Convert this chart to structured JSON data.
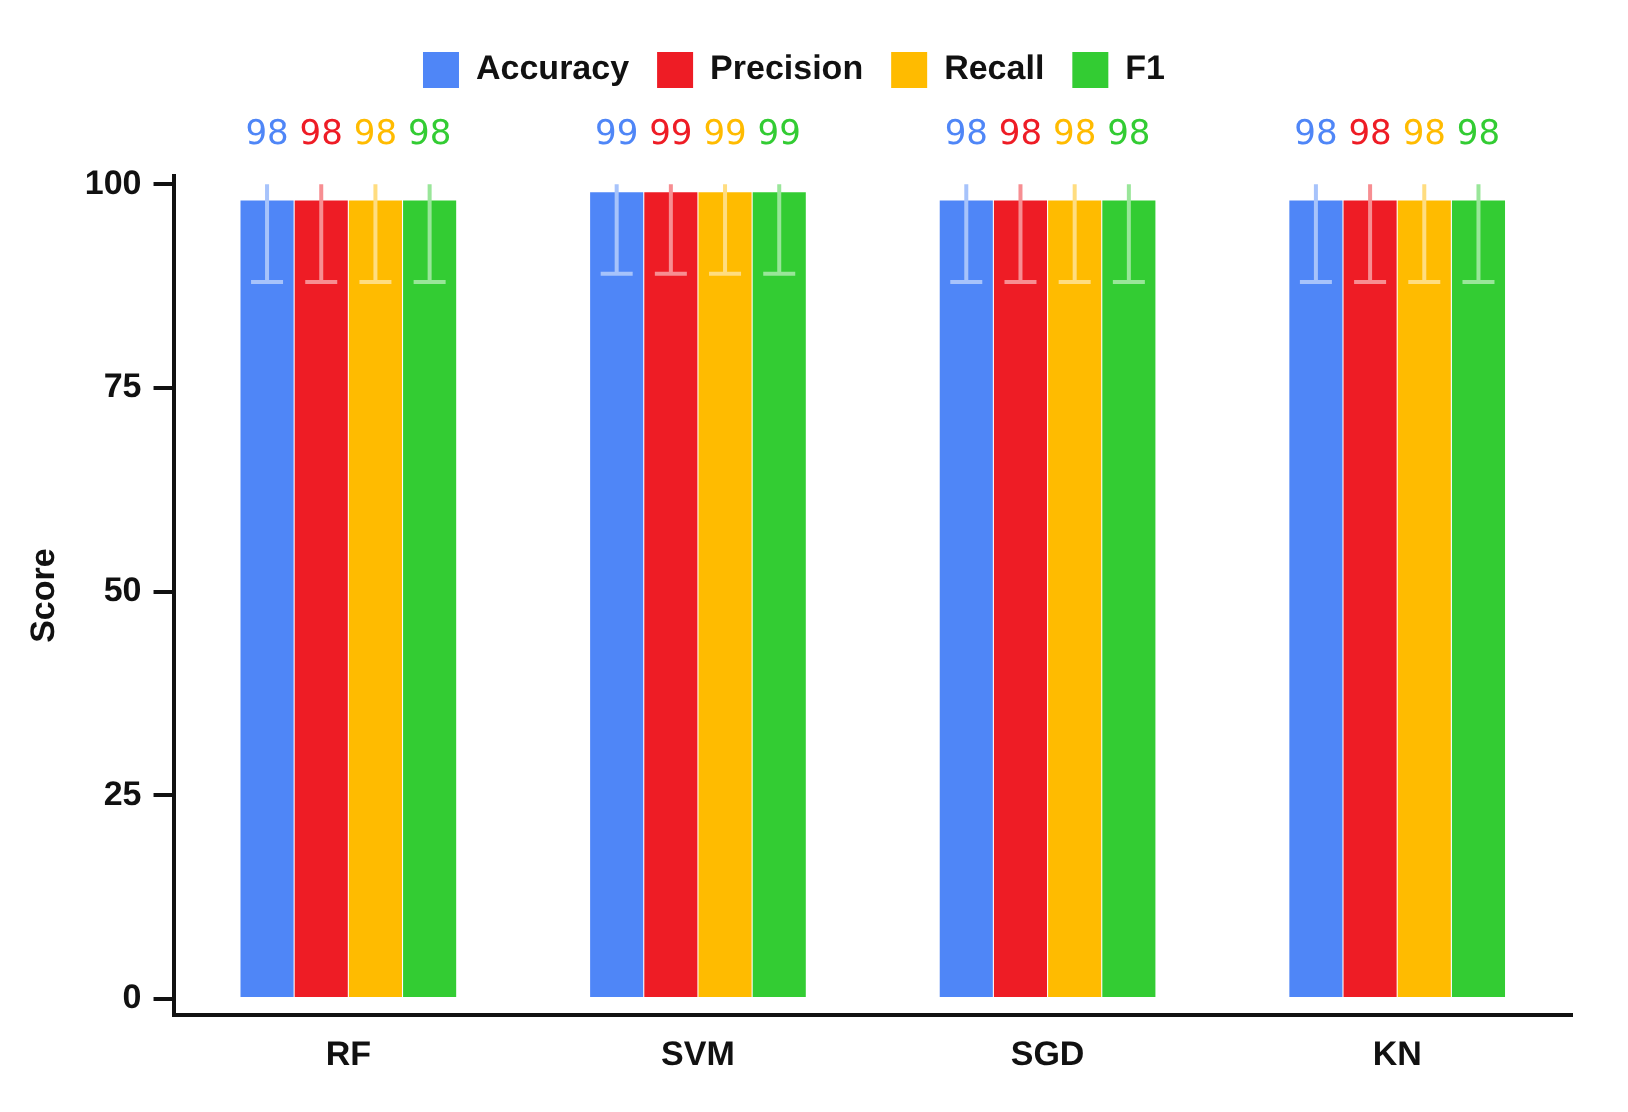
{
  "chart_data": {
    "type": "bar",
    "ylabel": "Score",
    "categories": [
      "RF",
      "SVM",
      "SGD",
      "KN"
    ],
    "series": [
      {
        "name": "Accuracy",
        "color": "#4f86f7",
        "values": [
          98,
          99,
          98,
          98
        ],
        "errors": [
          [
            88,
            100
          ],
          [
            89,
            100
          ],
          [
            88,
            100
          ],
          [
            88,
            100
          ]
        ]
      },
      {
        "name": "Precision",
        "color": "#ee1c25",
        "values": [
          98,
          99,
          98,
          98
        ],
        "errors": [
          [
            88,
            100
          ],
          [
            89,
            100
          ],
          [
            88,
            100
          ],
          [
            88,
            100
          ]
        ]
      },
      {
        "name": "Recall",
        "color": "#ffbb00",
        "values": [
          98,
          99,
          98,
          98
        ],
        "errors": [
          [
            88,
            100
          ],
          [
            89,
            100
          ],
          [
            88,
            100
          ],
          [
            88,
            100
          ]
        ]
      },
      {
        "name": "F1",
        "color": "#33cc33",
        "values": [
          98,
          99,
          98,
          98
        ],
        "errors": [
          [
            88,
            100
          ],
          [
            89,
            100
          ],
          [
            88,
            100
          ],
          [
            88,
            100
          ]
        ]
      }
    ],
    "ylim": [
      -2,
      101
    ],
    "yticks": [
      0,
      25,
      50,
      75,
      100
    ],
    "grid": false,
    "legend": "top",
    "data_labels": true
  }
}
